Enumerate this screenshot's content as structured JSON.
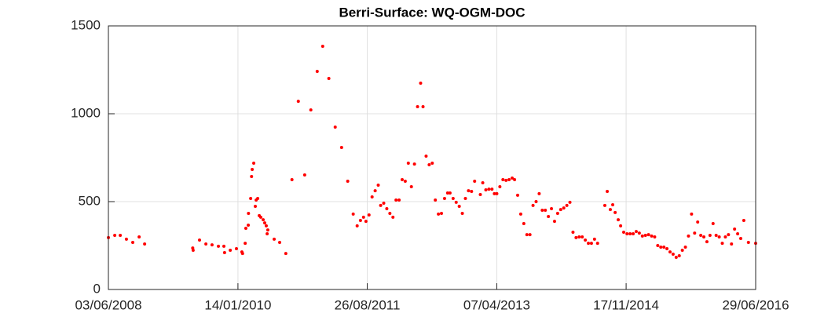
{
  "chart_data": {
    "type": "scatter",
    "title": "Berri-Surface: WQ-OGM-DOC",
    "color": "#ff0000",
    "grid": true,
    "xlim": [
      "2008-06-03",
      "2016-06-29"
    ],
    "xticks": [
      {
        "value": "2008-06-03",
        "label": "03/06/2008"
      },
      {
        "value": "2010-01-14",
        "label": "14/01/2010"
      },
      {
        "value": "2011-08-26",
        "label": "26/08/2011"
      },
      {
        "value": "2013-04-07",
        "label": "07/04/2013"
      },
      {
        "value": "2014-11-17",
        "label": "17/11/2014"
      },
      {
        "value": "2016-06-29",
        "label": "29/06/2016"
      }
    ],
    "ylim": [
      0,
      1500
    ],
    "yticks": [
      0,
      500,
      1000,
      1500
    ],
    "x": [
      "2008-06-03",
      "2008-07-02",
      "2008-07-27",
      "2008-08-24",
      "2008-09-22",
      "2008-10-21",
      "2008-11-15",
      "2009-06-24",
      "2009-06-22",
      "2009-07-23",
      "2009-08-21",
      "2009-09-18",
      "2009-10-17",
      "2009-11-11",
      "2009-11-14",
      "2009-12-10",
      "2010-01-07",
      "2010-02-01",
      "2010-02-04",
      "2010-02-16",
      "2010-02-19",
      "2010-03-02",
      "2010-03-03",
      "2010-03-13",
      "2010-03-17",
      "2010-03-20",
      "2010-03-27",
      "2010-04-03",
      "2010-04-07",
      "2010-04-14",
      "2010-04-21",
      "2010-04-28",
      "2010-05-09",
      "2010-05-16",
      "2010-05-23",
      "2010-05-27",
      "2010-05-30",
      "2010-06-28",
      "2010-07-23",
      "2010-08-20",
      "2010-09-17",
      "2010-10-16",
      "2010-11-14",
      "2010-12-12",
      "2011-01-10",
      "2011-02-04",
      "2011-03-04",
      "2011-04-02",
      "2011-05-01",
      "2011-05-29",
      "2011-06-23",
      "2011-07-11",
      "2011-07-26",
      "2011-08-09",
      "2011-08-20",
      "2011-09-03",
      "2011-09-17",
      "2011-10-01",
      "2011-10-15",
      "2011-10-26",
      "2011-11-09",
      "2011-11-23",
      "2011-12-07",
      "2011-12-21",
      "2012-01-04",
      "2012-01-18",
      "2012-02-01",
      "2012-02-15",
      "2012-02-29",
      "2012-03-14",
      "2012-03-28",
      "2012-04-11",
      "2012-04-25",
      "2012-05-06",
      "2012-05-20",
      "2012-06-03",
      "2012-06-17",
      "2012-07-01",
      "2012-07-15",
      "2012-07-29",
      "2012-08-12",
      "2012-08-26",
      "2012-09-06",
      "2012-09-20",
      "2012-10-04",
      "2012-10-18",
      "2012-11-01",
      "2012-11-15",
      "2012-11-29",
      "2012-12-13",
      "2012-12-27",
      "2013-01-22",
      "2013-02-02",
      "2013-02-16",
      "2013-03-02",
      "2013-03-16",
      "2013-03-27",
      "2013-04-07",
      "2013-04-21",
      "2013-05-05",
      "2013-05-19",
      "2013-06-02",
      "2013-06-16",
      "2013-06-27",
      "2013-07-11",
      "2013-07-25",
      "2013-08-08",
      "2013-08-22",
      "2013-09-05",
      "2013-09-19",
      "2013-10-03",
      "2013-10-17",
      "2013-10-31",
      "2013-11-14",
      "2013-11-28",
      "2013-12-12",
      "2013-12-26",
      "2014-01-09",
      "2014-01-23",
      "2014-02-06",
      "2014-02-20",
      "2014-03-06",
      "2014-03-20",
      "2014-04-03",
      "2014-04-17",
      "2014-05-01",
      "2014-05-15",
      "2014-05-29",
      "2014-06-12",
      "2014-06-26",
      "2014-07-10",
      "2014-08-12",
      "2014-08-23",
      "2014-09-06",
      "2014-09-17",
      "2014-09-28",
      "2014-10-12",
      "2014-10-23",
      "2014-11-06",
      "2014-11-21",
      "2014-12-05",
      "2014-12-19",
      "2015-01-02",
      "2015-01-16",
      "2015-01-30",
      "2015-02-13",
      "2015-02-27",
      "2015-03-13",
      "2015-03-27",
      "2015-04-10",
      "2015-04-24",
      "2015-05-08",
      "2015-05-22",
      "2015-06-05",
      "2015-06-19",
      "2015-07-03",
      "2015-07-17",
      "2015-07-31",
      "2015-08-14",
      "2015-08-28",
      "2015-09-11",
      "2015-09-25",
      "2015-10-09",
      "2015-10-23",
      "2015-11-06",
      "2015-11-20",
      "2015-12-04",
      "2015-12-18",
      "2016-01-01",
      "2016-01-15",
      "2016-01-29",
      "2016-02-12",
      "2016-02-26",
      "2016-03-11",
      "2016-03-25",
      "2016-04-08",
      "2016-04-22",
      "2016-05-06",
      "2016-05-27",
      "2016-06-29"
    ],
    "values": [
      295,
      308,
      308,
      286,
      268,
      299,
      259,
      223,
      236,
      281,
      259,
      254,
      246,
      246,
      210,
      223,
      232,
      214,
      205,
      263,
      348,
      366,
      433,
      518,
      643,
      683,
      719,
      473,
      509,
      518,
      420,
      411,
      397,
      379,
      362,
      317,
      339,
      286,
      268,
      205,
      625,
      1071,
      652,
      1022,
      1241,
      1384,
      1201,
      924,
      808,
      616,
      429,
      362,
      393,
      411,
      388,
      424,
      527,
      562,
      594,
      478,
      491,
      460,
      433,
      411,
      509,
      509,
      625,
      616,
      719,
      585,
      714,
      1040,
      1174,
      1040,
      759,
      710,
      719,
      509,
      429,
      433,
      518,
      549,
      549,
      518,
      496,
      473,
      433,
      518,
      562,
      558,
      616,
      540,
      607,
      567,
      571,
      571,
      545,
      545,
      585,
      625,
      621,
      625,
      634,
      625,
      536,
      429,
      375,
      312,
      312,
      478,
      500,
      545,
      451,
      451,
      415,
      460,
      388,
      433,
      455,
      464,
      478,
      496,
      326,
      295,
      299,
      299,
      281,
      263,
      263,
      286,
      263,
      478,
      558,
      455,
      482,
      438,
      397,
      362,
      326,
      317,
      317,
      317,
      330,
      321,
      304,
      308,
      312,
      304,
      299,
      250,
      241,
      241,
      232,
      214,
      201,
      183,
      192,
      223,
      241,
      304,
      429,
      321,
      384,
      308,
      299,
      272,
      308,
      375,
      308,
      299,
      263,
      299,
      312,
      259,
      344,
      317,
      290,
      393,
      268,
      263
    ]
  }
}
